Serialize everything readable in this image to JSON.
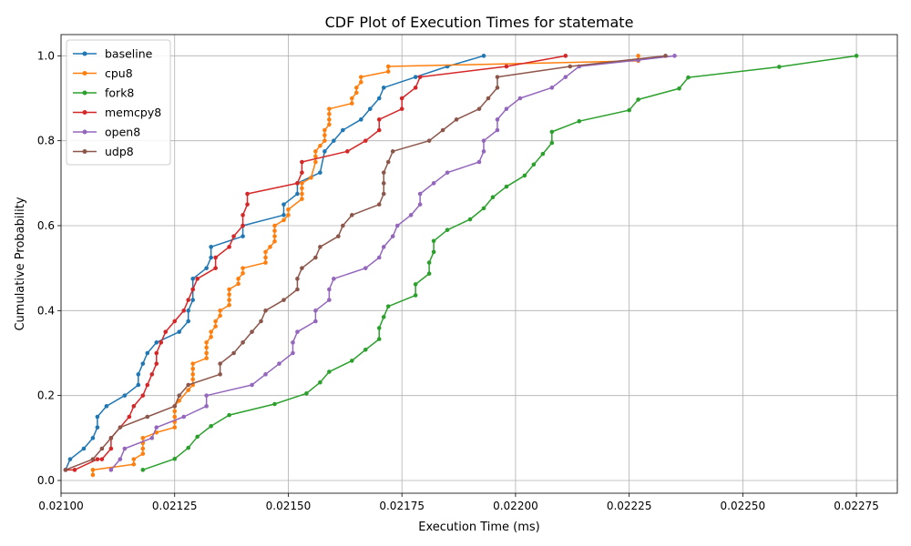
{
  "chart_data": {
    "type": "line",
    "title": "CDF Plot of Execution Times for statemate",
    "xlabel": "Execution Time (ms)",
    "ylabel": "Cumulative Probability",
    "xlim": [
      0.021,
      0.02284
    ],
    "ylim": [
      -0.03,
      1.05
    ],
    "xticks": [
      0.021,
      0.02125,
      0.0215,
      0.02175,
      0.022,
      0.02225,
      0.0225,
      0.02275
    ],
    "xtick_labels": [
      "0.02100",
      "0.02125",
      "0.02150",
      "0.02175",
      "0.02200",
      "0.02225",
      "0.02250",
      "0.02275"
    ],
    "yticks": [
      0.0,
      0.2,
      0.4,
      0.6,
      0.8,
      1.0
    ],
    "ytick_labels": [
      "0.0",
      "0.2",
      "0.4",
      "0.6",
      "0.8",
      "1.0"
    ],
    "grid": true,
    "legend_position": "upper-left",
    "series": [
      {
        "name": "baseline",
        "color": "#1f77b4",
        "points": [
          [
            0.02101,
            0.025
          ],
          [
            0.02102,
            0.05
          ],
          [
            0.02105,
            0.075
          ],
          [
            0.02107,
            0.1
          ],
          [
            0.02108,
            0.125
          ],
          [
            0.02108,
            0.15
          ],
          [
            0.0211,
            0.175
          ],
          [
            0.02114,
            0.2
          ],
          [
            0.02117,
            0.225
          ],
          [
            0.02117,
            0.25
          ],
          [
            0.02118,
            0.275
          ],
          [
            0.02119,
            0.3
          ],
          [
            0.02121,
            0.325
          ],
          [
            0.02126,
            0.35
          ],
          [
            0.02128,
            0.375
          ],
          [
            0.02128,
            0.4
          ],
          [
            0.02129,
            0.425
          ],
          [
            0.02129,
            0.45
          ],
          [
            0.02129,
            0.475
          ],
          [
            0.02132,
            0.5
          ],
          [
            0.02133,
            0.525
          ],
          [
            0.02133,
            0.55
          ],
          [
            0.0214,
            0.575
          ],
          [
            0.0214,
            0.6
          ],
          [
            0.02149,
            0.625
          ],
          [
            0.02149,
            0.65
          ],
          [
            0.02152,
            0.675
          ],
          [
            0.02152,
            0.7
          ],
          [
            0.02157,
            0.725
          ],
          [
            0.02158,
            0.775
          ],
          [
            0.0216,
            0.8
          ],
          [
            0.02162,
            0.825
          ],
          [
            0.02166,
            0.85
          ],
          [
            0.02168,
            0.875
          ],
          [
            0.0217,
            0.9
          ],
          [
            0.02171,
            0.925
          ],
          [
            0.02178,
            0.95
          ],
          [
            0.02185,
            0.975
          ],
          [
            0.02193,
            1.0
          ]
        ]
      },
      {
        "name": "cpu8",
        "color": "#ff7f0e",
        "points": [
          [
            0.02107,
            0.013
          ],
          [
            0.02107,
            0.025
          ],
          [
            0.02116,
            0.038
          ],
          [
            0.02116,
            0.05
          ],
          [
            0.02118,
            0.063
          ],
          [
            0.02118,
            0.075
          ],
          [
            0.02118,
            0.088
          ],
          [
            0.02118,
            0.1
          ],
          [
            0.02121,
            0.113
          ],
          [
            0.02125,
            0.125
          ],
          [
            0.02125,
            0.138
          ],
          [
            0.02125,
            0.15
          ],
          [
            0.02125,
            0.163
          ],
          [
            0.02125,
            0.175
          ],
          [
            0.02126,
            0.188
          ],
          [
            0.02128,
            0.213
          ],
          [
            0.02129,
            0.225
          ],
          [
            0.02129,
            0.238
          ],
          [
            0.02129,
            0.25
          ],
          [
            0.02129,
            0.263
          ],
          [
            0.02129,
            0.275
          ],
          [
            0.02132,
            0.288
          ],
          [
            0.02132,
            0.3
          ],
          [
            0.02132,
            0.313
          ],
          [
            0.02132,
            0.325
          ],
          [
            0.02133,
            0.338
          ],
          [
            0.02133,
            0.35
          ],
          [
            0.02134,
            0.363
          ],
          [
            0.02134,
            0.375
          ],
          [
            0.02135,
            0.388
          ],
          [
            0.02135,
            0.4
          ],
          [
            0.02137,
            0.413
          ],
          [
            0.02137,
            0.425
          ],
          [
            0.02137,
            0.438
          ],
          [
            0.02137,
            0.45
          ],
          [
            0.02139,
            0.463
          ],
          [
            0.02139,
            0.475
          ],
          [
            0.0214,
            0.488
          ],
          [
            0.0214,
            0.5
          ],
          [
            0.02145,
            0.513
          ],
          [
            0.02145,
            0.525
          ],
          [
            0.02145,
            0.538
          ],
          [
            0.02146,
            0.55
          ],
          [
            0.02147,
            0.563
          ],
          [
            0.02147,
            0.575
          ],
          [
            0.02147,
            0.588
          ],
          [
            0.02147,
            0.6
          ],
          [
            0.02149,
            0.613
          ],
          [
            0.0215,
            0.625
          ],
          [
            0.0215,
            0.638
          ],
          [
            0.02153,
            0.663
          ],
          [
            0.02153,
            0.675
          ],
          [
            0.02153,
            0.688
          ],
          [
            0.02153,
            0.7
          ],
          [
            0.02155,
            0.713
          ],
          [
            0.02156,
            0.75
          ],
          [
            0.02156,
            0.763
          ],
          [
            0.02156,
            0.775
          ],
          [
            0.02157,
            0.788
          ],
          [
            0.02158,
            0.8
          ],
          [
            0.02158,
            0.813
          ],
          [
            0.02158,
            0.825
          ],
          [
            0.02159,
            0.838
          ],
          [
            0.02159,
            0.85
          ],
          [
            0.02159,
            0.863
          ],
          [
            0.02159,
            0.875
          ],
          [
            0.02164,
            0.888
          ],
          [
            0.02164,
            0.9
          ],
          [
            0.02165,
            0.913
          ],
          [
            0.02165,
            0.925
          ],
          [
            0.02166,
            0.938
          ],
          [
            0.02166,
            0.95
          ],
          [
            0.02172,
            0.963
          ],
          [
            0.02172,
            0.975
          ],
          [
            0.02227,
            0.988
          ],
          [
            0.02227,
            1.0
          ]
        ]
      },
      {
        "name": "fork8",
        "color": "#2ca02c",
        "points": [
          [
            0.02118,
            0.025
          ],
          [
            0.02125,
            0.051
          ],
          [
            0.02128,
            0.077
          ],
          [
            0.0213,
            0.103
          ],
          [
            0.02133,
            0.128
          ],
          [
            0.02137,
            0.154
          ],
          [
            0.02147,
            0.18
          ],
          [
            0.02154,
            0.205
          ],
          [
            0.02157,
            0.231
          ],
          [
            0.02159,
            0.256
          ],
          [
            0.02164,
            0.282
          ],
          [
            0.02167,
            0.308
          ],
          [
            0.0217,
            0.333
          ],
          [
            0.0217,
            0.359
          ],
          [
            0.02171,
            0.385
          ],
          [
            0.02172,
            0.41
          ],
          [
            0.02178,
            0.436
          ],
          [
            0.02178,
            0.462
          ],
          [
            0.02181,
            0.487
          ],
          [
            0.02181,
            0.513
          ],
          [
            0.02182,
            0.538
          ],
          [
            0.02182,
            0.564
          ],
          [
            0.02185,
            0.59
          ],
          [
            0.0219,
            0.615
          ],
          [
            0.02193,
            0.641
          ],
          [
            0.02195,
            0.667
          ],
          [
            0.02198,
            0.692
          ],
          [
            0.02202,
            0.718
          ],
          [
            0.02204,
            0.744
          ],
          [
            0.02206,
            0.769
          ],
          [
            0.02208,
            0.795
          ],
          [
            0.02208,
            0.821
          ],
          [
            0.02214,
            0.846
          ],
          [
            0.02225,
            0.872
          ],
          [
            0.02227,
            0.897
          ],
          [
            0.02236,
            0.923
          ],
          [
            0.02238,
            0.949
          ],
          [
            0.02258,
            0.974
          ],
          [
            0.02275,
            1.0
          ]
        ]
      },
      {
        "name": "memcpy8",
        "color": "#d62728",
        "points": [
          [
            0.02101,
            0.025
          ],
          [
            0.02103,
            0.025
          ],
          [
            0.02108,
            0.05
          ],
          [
            0.02109,
            0.05
          ],
          [
            0.02111,
            0.075
          ],
          [
            0.02111,
            0.1
          ],
          [
            0.02115,
            0.15
          ],
          [
            0.02116,
            0.175
          ],
          [
            0.02118,
            0.2
          ],
          [
            0.02119,
            0.225
          ],
          [
            0.0212,
            0.25
          ],
          [
            0.02121,
            0.275
          ],
          [
            0.02121,
            0.3
          ],
          [
            0.02122,
            0.325
          ],
          [
            0.02123,
            0.35
          ],
          [
            0.02125,
            0.375
          ],
          [
            0.02127,
            0.4
          ],
          [
            0.02128,
            0.425
          ],
          [
            0.02129,
            0.45
          ],
          [
            0.0213,
            0.475
          ],
          [
            0.02134,
            0.5
          ],
          [
            0.02134,
            0.525
          ],
          [
            0.02137,
            0.55
          ],
          [
            0.02138,
            0.575
          ],
          [
            0.0214,
            0.6
          ],
          [
            0.0214,
            0.625
          ],
          [
            0.02141,
            0.65
          ],
          [
            0.02141,
            0.675
          ],
          [
            0.02152,
            0.7
          ],
          [
            0.02153,
            0.725
          ],
          [
            0.02153,
            0.75
          ],
          [
            0.02163,
            0.775
          ],
          [
            0.02167,
            0.8
          ],
          [
            0.0217,
            0.825
          ],
          [
            0.0217,
            0.85
          ],
          [
            0.02175,
            0.875
          ],
          [
            0.02175,
            0.9
          ],
          [
            0.02178,
            0.925
          ],
          [
            0.02179,
            0.95
          ],
          [
            0.02198,
            0.975
          ],
          [
            0.02211,
            1.0
          ]
        ]
      },
      {
        "name": "open8",
        "color": "#9467bd",
        "points": [
          [
            0.02111,
            0.025
          ],
          [
            0.02113,
            0.05
          ],
          [
            0.02114,
            0.075
          ],
          [
            0.0212,
            0.1
          ],
          [
            0.02121,
            0.125
          ],
          [
            0.02127,
            0.15
          ],
          [
            0.02132,
            0.175
          ],
          [
            0.02132,
            0.2
          ],
          [
            0.02142,
            0.225
          ],
          [
            0.02145,
            0.25
          ],
          [
            0.02148,
            0.275
          ],
          [
            0.02151,
            0.3
          ],
          [
            0.02151,
            0.325
          ],
          [
            0.02152,
            0.35
          ],
          [
            0.02156,
            0.375
          ],
          [
            0.02156,
            0.4
          ],
          [
            0.02159,
            0.425
          ],
          [
            0.02159,
            0.45
          ],
          [
            0.0216,
            0.475
          ],
          [
            0.02167,
            0.5
          ],
          [
            0.0217,
            0.525
          ],
          [
            0.02171,
            0.55
          ],
          [
            0.02173,
            0.575
          ],
          [
            0.02174,
            0.6
          ],
          [
            0.02177,
            0.625
          ],
          [
            0.02179,
            0.65
          ],
          [
            0.02179,
            0.675
          ],
          [
            0.02182,
            0.7
          ],
          [
            0.02185,
            0.725
          ],
          [
            0.02192,
            0.75
          ],
          [
            0.02193,
            0.775
          ],
          [
            0.02193,
            0.8
          ],
          [
            0.02196,
            0.825
          ],
          [
            0.02196,
            0.85
          ],
          [
            0.02198,
            0.875
          ],
          [
            0.02201,
            0.9
          ],
          [
            0.02208,
            0.925
          ],
          [
            0.02211,
            0.95
          ],
          [
            0.02214,
            0.975
          ],
          [
            0.02227,
            0.99
          ],
          [
            0.02235,
            1.0
          ]
        ]
      },
      {
        "name": "udp8",
        "color": "#8c564b",
        "points": [
          [
            0.02101,
            0.025
          ],
          [
            0.02107,
            0.05
          ],
          [
            0.02109,
            0.075
          ],
          [
            0.02111,
            0.1
          ],
          [
            0.02113,
            0.125
          ],
          [
            0.02119,
            0.15
          ],
          [
            0.02125,
            0.175
          ],
          [
            0.02126,
            0.2
          ],
          [
            0.02128,
            0.225
          ],
          [
            0.02135,
            0.25
          ],
          [
            0.02135,
            0.275
          ],
          [
            0.02138,
            0.3
          ],
          [
            0.0214,
            0.325
          ],
          [
            0.02142,
            0.35
          ],
          [
            0.02144,
            0.375
          ],
          [
            0.02145,
            0.4
          ],
          [
            0.02149,
            0.425
          ],
          [
            0.02152,
            0.45
          ],
          [
            0.02152,
            0.475
          ],
          [
            0.02153,
            0.5
          ],
          [
            0.02156,
            0.525
          ],
          [
            0.02157,
            0.55
          ],
          [
            0.02161,
            0.575
          ],
          [
            0.02162,
            0.6
          ],
          [
            0.02164,
            0.625
          ],
          [
            0.0217,
            0.65
          ],
          [
            0.02171,
            0.675
          ],
          [
            0.02171,
            0.7
          ],
          [
            0.02171,
            0.725
          ],
          [
            0.02172,
            0.75
          ],
          [
            0.02173,
            0.775
          ],
          [
            0.02181,
            0.8
          ],
          [
            0.02184,
            0.825
          ],
          [
            0.02187,
            0.85
          ],
          [
            0.02192,
            0.875
          ],
          [
            0.02194,
            0.9
          ],
          [
            0.02196,
            0.925
          ],
          [
            0.02196,
            0.95
          ],
          [
            0.02212,
            0.975
          ],
          [
            0.02233,
            1.0
          ]
        ]
      }
    ]
  }
}
